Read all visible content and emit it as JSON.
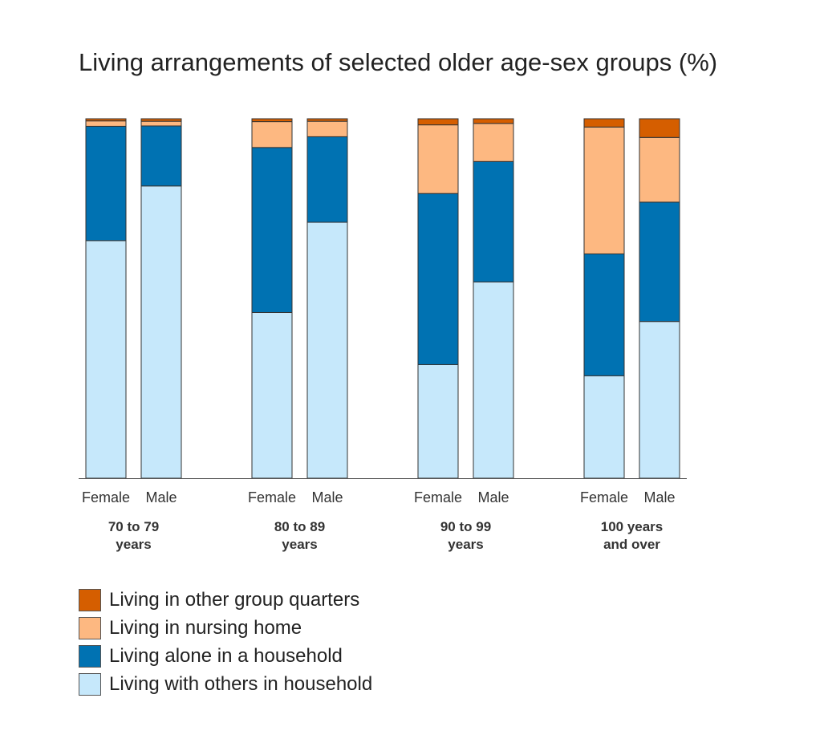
{
  "title": "Living arrangements of selected older age-sex groups (%)",
  "colors": {
    "other_group_quarters": "#d55e00",
    "nursing_home": "#fdb881",
    "alone": "#0072b2",
    "with_others": "#c6e8fb",
    "outline": "#333333"
  },
  "chart_data": {
    "type": "bar",
    "stacked": true,
    "title": "Living arrangements of selected older age-sex groups (%)",
    "ylim": [
      0,
      100
    ],
    "grid": false,
    "legend_position": "bottom-left",
    "groups": [
      {
        "label": "70 to 79 years",
        "label_lines": [
          "70 to 79",
          "years"
        ],
        "bars": [
          "Female",
          "Male"
        ]
      },
      {
        "label": "80 to 89 years",
        "label_lines": [
          "80 to 89",
          "years"
        ],
        "bars": [
          "Female",
          "Male"
        ]
      },
      {
        "label": "90 to 99 years",
        "label_lines": [
          "90 to 99",
          "years"
        ],
        "bars": [
          "Female",
          "Male"
        ]
      },
      {
        "label": "100 years and over",
        "label_lines": [
          "100 years",
          "and over"
        ],
        "bars": [
          "Female",
          "Male"
        ]
      }
    ],
    "categories": [
      "70 to 79 Female",
      "70 to 79 Male",
      "80 to 89 Female",
      "80 to 89 Male",
      "90 to 99 Female",
      "90 to 99 Male",
      "100 years and over Female",
      "100 years and over Male"
    ],
    "series": [
      {
        "name": "Living with others in household",
        "color_key": "with_others",
        "values": [
          66.1,
          81.3,
          46.1,
          71.2,
          31.6,
          54.6,
          28.5,
          43.6
        ]
      },
      {
        "name": "Living alone in a household",
        "color_key": "alone",
        "values": [
          31.8,
          16.7,
          45.9,
          23.8,
          47.6,
          33.5,
          33.9,
          33.2
        ]
      },
      {
        "name": "Living in nursing home",
        "color_key": "nursing_home",
        "values": [
          1.5,
          1.3,
          7.2,
          4.3,
          19.1,
          10.6,
          35.3,
          18.0
        ]
      },
      {
        "name": "Living in other group quarters",
        "color_key": "other_group_quarters",
        "values": [
          0.6,
          0.7,
          0.8,
          0.7,
          1.7,
          1.3,
          2.3,
          5.2
        ]
      }
    ]
  },
  "legend": [
    {
      "label": "Living in other group quarters",
      "color_key": "other_group_quarters"
    },
    {
      "label": "Living in nursing home",
      "color_key": "nursing_home"
    },
    {
      "label": "Living alone in a household",
      "color_key": "alone"
    },
    {
      "label": "Living with others in household",
      "color_key": "with_others"
    }
  ]
}
